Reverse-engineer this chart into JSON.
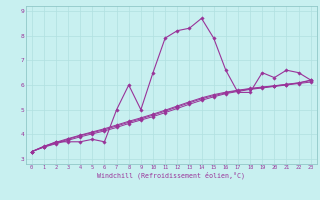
{
  "xlabel": "Windchill (Refroidissement éolien,°C)",
  "bg_color": "#c8f0f0",
  "line_color": "#993399",
  "grid_color": "#b0e0e0",
  "xlim": [
    -0.5,
    23.5
  ],
  "ylim": [
    2.8,
    9.2
  ],
  "xticks": [
    0,
    1,
    2,
    3,
    4,
    5,
    6,
    7,
    8,
    9,
    10,
    11,
    12,
    13,
    14,
    15,
    16,
    17,
    18,
    19,
    20,
    21,
    22,
    23
  ],
  "yticks": [
    3,
    4,
    5,
    6,
    7,
    8,
    9
  ],
  "hours": [
    0,
    1,
    2,
    3,
    4,
    5,
    6,
    7,
    8,
    9,
    10,
    11,
    12,
    13,
    14,
    15,
    16,
    17,
    18,
    19,
    20,
    21,
    22,
    23
  ],
  "main_values": [
    3.3,
    3.5,
    3.7,
    3.7,
    3.7,
    3.8,
    3.7,
    5.0,
    6.0,
    5.0,
    6.5,
    7.9,
    8.2,
    8.3,
    8.7,
    7.9,
    6.6,
    5.7,
    5.7,
    6.5,
    6.3,
    6.6,
    6.5,
    6.2
  ],
  "line2_values": [
    3.3,
    3.48,
    3.62,
    3.76,
    3.9,
    4.02,
    4.14,
    4.28,
    4.44,
    4.58,
    4.72,
    4.88,
    5.05,
    5.22,
    5.38,
    5.52,
    5.65,
    5.74,
    5.82,
    5.88,
    5.94,
    6.0,
    6.06,
    6.12
  ],
  "line3_values": [
    3.3,
    3.5,
    3.65,
    3.8,
    3.95,
    4.07,
    4.19,
    4.34,
    4.49,
    4.63,
    4.78,
    4.94,
    5.11,
    5.28,
    5.44,
    5.57,
    5.68,
    5.77,
    5.84,
    5.9,
    5.96,
    6.02,
    6.08,
    6.18
  ],
  "line4_values": [
    3.3,
    3.52,
    3.68,
    3.83,
    3.97,
    4.1,
    4.23,
    4.38,
    4.53,
    4.67,
    4.82,
    4.98,
    5.15,
    5.32,
    5.48,
    5.61,
    5.71,
    5.79,
    5.86,
    5.92,
    5.97,
    6.03,
    6.09,
    6.2
  ]
}
